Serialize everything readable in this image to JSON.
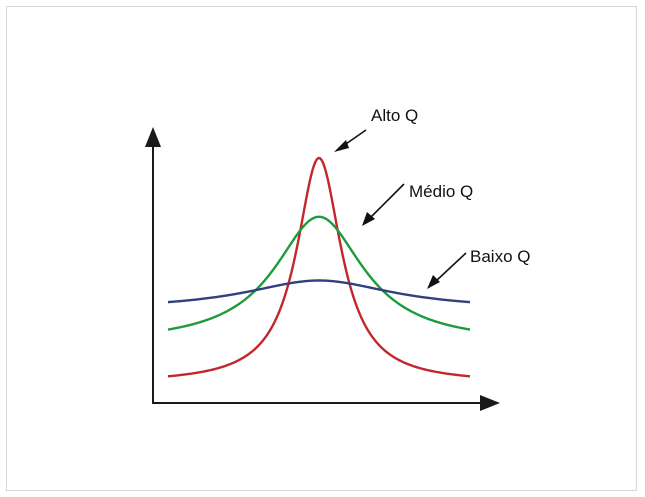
{
  "chart_data": {
    "type": "line",
    "title": "",
    "xlabel": "",
    "ylabel": "",
    "grid": false,
    "legend": "none",
    "series": [
      {
        "name": "Alto Q",
        "color": "#c0282c",
        "peak": 1.0,
        "base": 0.08,
        "width": 0.09
      },
      {
        "name": "Médio Q",
        "color": "#1e9b3c",
        "peak": 0.76,
        "base": 0.24,
        "width": 0.18
      },
      {
        "name": "Baixo Q",
        "color": "#33407f",
        "peak": 0.5,
        "base": 0.38,
        "width": 0.3
      }
    ],
    "x_center": 0.5,
    "annotations": [
      {
        "text": "Alto Q",
        "series": "Alto Q"
      },
      {
        "text": "Médio Q",
        "series": "Médio Q"
      },
      {
        "text": "Baixo Q",
        "series": "Baixo Q"
      }
    ]
  }
}
